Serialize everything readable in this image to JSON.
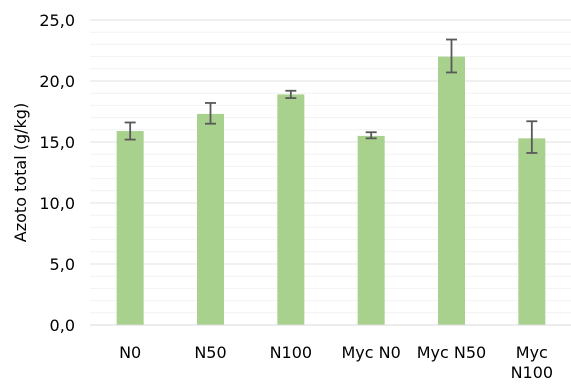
{
  "chart_data": {
    "type": "bar",
    "categories": [
      [
        "N0"
      ],
      [
        "N50"
      ],
      [
        "N100"
      ],
      [
        "Myc N0"
      ],
      [
        "Myc N50"
      ],
      [
        "Myc",
        "N100"
      ]
    ],
    "values": [
      15.9,
      17.3,
      18.9,
      15.5,
      22.0,
      15.3
    ],
    "error_low": [
      15.2,
      16.5,
      18.6,
      15.3,
      20.7,
      14.1
    ],
    "error_high": [
      16.6,
      18.2,
      19.2,
      15.8,
      23.4,
      16.7
    ],
    "ylabel": "Azoto total (g/kg)",
    "xlabel": "",
    "ylim": [
      0,
      25
    ],
    "yticks": [
      "0,0",
      "5,0",
      "10,0",
      "15,0",
      "20,0",
      "25,0"
    ],
    "grid": "horizontal",
    "legend": "none",
    "colors": {
      "bar": "#a9d18e",
      "error_bar": "#595959",
      "grid": "#e0e0e0",
      "axis": "#d9d9d9"
    }
  }
}
